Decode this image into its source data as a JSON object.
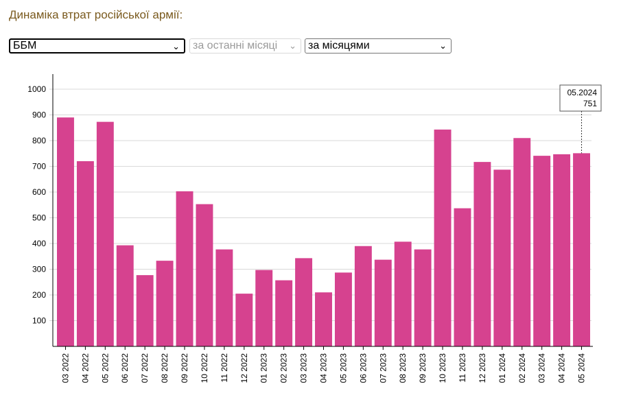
{
  "title": "Динаміка втрат російської армії:",
  "controls": {
    "category": {
      "value": "ББМ",
      "icon": "chevron-down-icon"
    },
    "period": {
      "value": "за останні місяці",
      "icon": "chevron-down-icon"
    },
    "grouping": {
      "value": "за місяцями",
      "icon": "chevron-down-icon"
    }
  },
  "tooltip": {
    "label": "05.2024",
    "value": "751"
  },
  "chart_data": {
    "type": "bar",
    "title": "",
    "xlabel": "",
    "ylabel": "",
    "ylim": [
      0,
      1000
    ],
    "yticks": [
      100,
      200,
      300,
      400,
      500,
      600,
      700,
      800,
      900,
      1000
    ],
    "grid": true,
    "bar_color": "#d6428f",
    "categories": [
      "03.2022",
      "04.2022",
      "05.2022",
      "06.2022",
      "07.2022",
      "08.2022",
      "09.2022",
      "10.2022",
      "11.2022",
      "12.2022",
      "01.2023",
      "02.2023",
      "03.2023",
      "04.2023",
      "05.2023",
      "06.2023",
      "07.2023",
      "08.2023",
      "09.2023",
      "10.2023",
      "11.2023",
      "12.2023",
      "01.2024",
      "02.2024",
      "03.2024",
      "04.2024",
      "05.2024"
    ],
    "values": [
      890,
      720,
      873,
      393,
      277,
      333,
      603,
      553,
      377,
      205,
      297,
      257,
      343,
      210,
      287,
      390,
      337,
      407,
      377,
      843,
      537,
      717,
      687,
      810,
      741,
      747,
      751
    ]
  }
}
